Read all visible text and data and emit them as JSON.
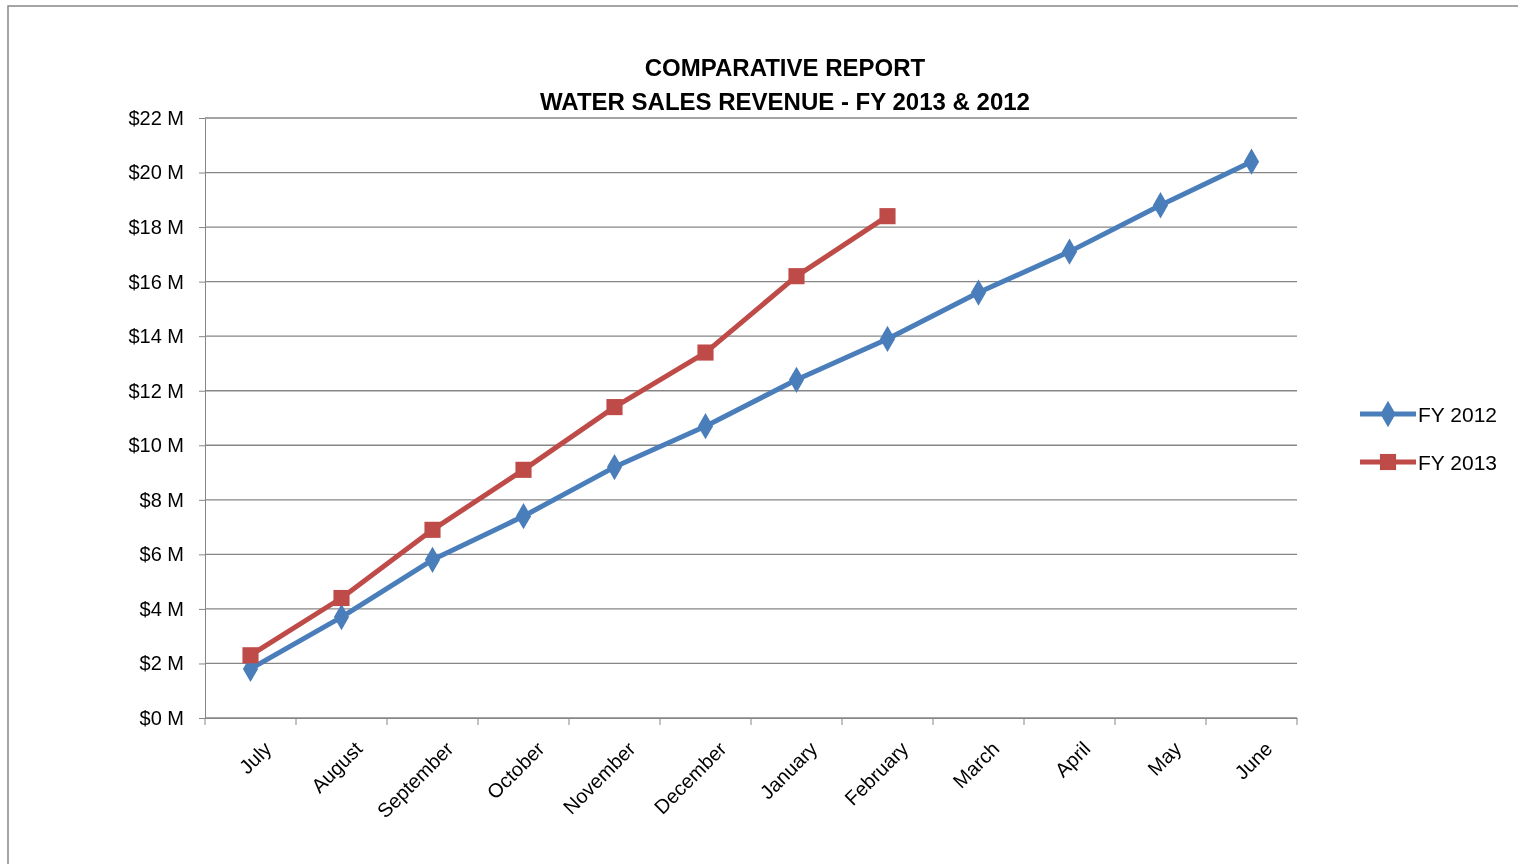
{
  "chart_data": {
    "type": "line",
    "title": "COMPARATIVE REPORT\nWATER SALES REVENUE - FY 2013 & 2012",
    "categories": [
      "July",
      "August",
      "September",
      "October",
      "November",
      "December",
      "January",
      "February",
      "March",
      "April",
      "May",
      "June"
    ],
    "series": [
      {
        "name": "FY 2012",
        "color": "#4a7ebb",
        "marker": "diamond",
        "values": [
          1.8,
          3.7,
          5.8,
          7.4,
          9.2,
          10.7,
          12.4,
          13.9,
          15.6,
          17.1,
          18.8,
          20.4
        ]
      },
      {
        "name": "FY 2013",
        "color": "#be4b48",
        "marker": "square",
        "values": [
          2.3,
          4.4,
          6.9,
          9.1,
          11.4,
          13.4,
          16.2,
          18.4,
          null,
          null,
          null,
          null
        ]
      }
    ],
    "ylim": [
      0,
      22
    ],
    "yticks": [
      {
        "value": 0,
        "label": "$0 M"
      },
      {
        "value": 2,
        "label": "$2 M"
      },
      {
        "value": 4,
        "label": "$4 M"
      },
      {
        "value": 6,
        "label": "$6 M"
      },
      {
        "value": 8,
        "label": "$8 M"
      },
      {
        "value": 10,
        "label": "$10 M"
      },
      {
        "value": 12,
        "label": "$12 M"
      },
      {
        "value": 14,
        "label": "$14 M"
      },
      {
        "value": 16,
        "label": "$16 M"
      },
      {
        "value": 18,
        "label": "$18 M"
      },
      {
        "value": 20,
        "label": "$20 M"
      },
      {
        "value": 22,
        "label": "$22 M"
      }
    ],
    "grid": "y",
    "legend": "right",
    "line_style": "solid"
  }
}
